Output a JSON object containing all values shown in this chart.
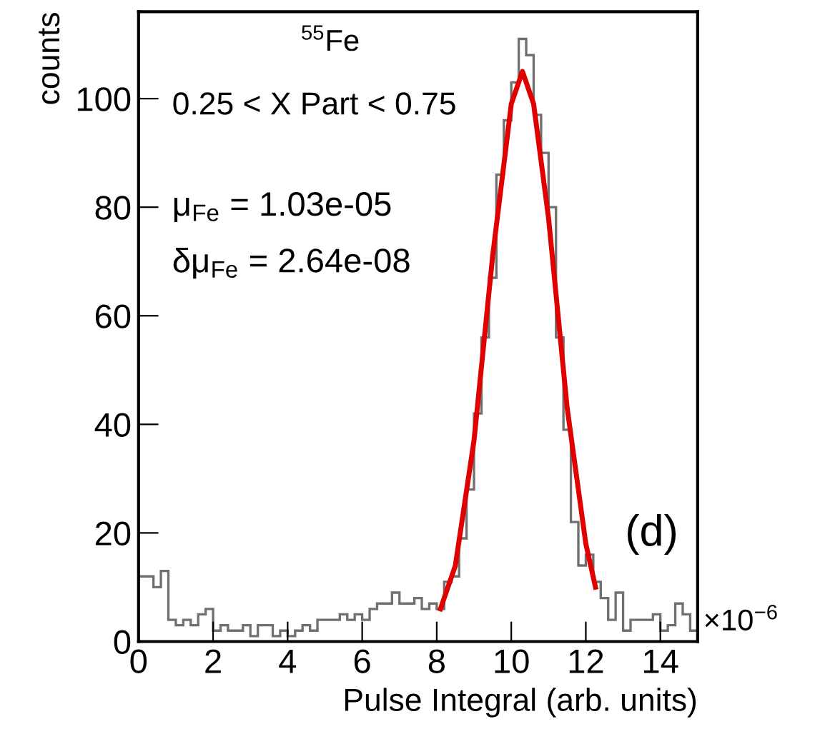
{
  "chart_data": {
    "type": "histogram",
    "xlabel": "Pulse Integral (arb. units)",
    "ylabel": "counts",
    "xlim": [
      0,
      15
    ],
    "ylim": [
      0,
      116
    ],
    "xticks": [
      0,
      2,
      4,
      6,
      8,
      10,
      12,
      14
    ],
    "yticks": [
      0,
      20,
      40,
      60,
      80,
      100
    ],
    "grid": false,
    "legend": false,
    "annotations": [
      "$^{55}$Fe",
      "0.25 < X Part < 0.75",
      "μ$_{Fe}$ = 1.03e-05",
      "δμ$_{Fe}$ = 2.64e-08",
      "(d)",
      "×10$^{−6}$"
    ],
    "series": [
      {
        "color": "#707070",
        "bins": [
          0,
          0.2,
          0.4,
          0.6,
          0.8,
          1.0,
          1.2,
          1.4,
          1.6,
          1.8,
          2.0,
          2.2,
          2.4,
          2.6,
          2.8,
          3.0,
          3.2,
          3.4,
          3.6,
          3.8,
          4.0,
          4.2,
          4.4,
          4.6,
          4.8,
          5.0,
          5.2,
          5.4,
          5.6,
          5.8,
          6.0,
          6.2,
          6.4,
          6.6,
          6.8,
          7.0,
          7.2,
          7.4,
          7.6,
          7.8,
          8.0,
          8.2,
          8.4,
          8.6,
          8.8,
          9.0,
          9.2,
          9.4,
          9.6,
          9.8,
          10.0,
          10.2,
          10.4,
          10.6,
          10.8,
          11.0,
          11.2,
          11.4,
          11.6,
          11.8,
          12.0,
          12.2,
          12.4,
          12.6,
          12.8,
          13.0,
          13.2,
          13.4,
          13.6,
          13.8,
          14.0,
          14.2,
          14.4,
          14.6,
          14.8,
          15.0
        ],
        "values": [
          12,
          12,
          10,
          13,
          4,
          3,
          4,
          3,
          5,
          6,
          2,
          3,
          2,
          2,
          3,
          1,
          3,
          3,
          1,
          2,
          1,
          2,
          3,
          2,
          4,
          4,
          4,
          5,
          4,
          5,
          4,
          6,
          7,
          7,
          9,
          7,
          7,
          8,
          6,
          7,
          6,
          11,
          12,
          19,
          28,
          42,
          56,
          67,
          86,
          96,
          103,
          111,
          108,
          97,
          90,
          80,
          56,
          39,
          22,
          14,
          16,
          11,
          8,
          4,
          9,
          2,
          4,
          4,
          4,
          5,
          2,
          3,
          7,
          5,
          2
        ]
      },
      {
        "type": "line",
        "color": "#e00000",
        "x": [
          8.1,
          8.5,
          9.0,
          9.5,
          10.0,
          10.3,
          10.6,
          11.0,
          11.5,
          12.0,
          12.26
        ],
        "values": [
          6,
          14,
          37,
          71,
          99,
          105,
          99,
          78,
          43,
          18,
          10
        ]
      }
    ]
  }
}
